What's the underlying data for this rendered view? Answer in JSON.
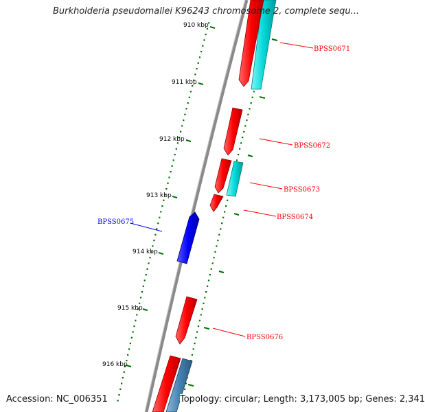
{
  "header": {
    "title": "Burkholderia pseudomallei K96243 chromosome 2, complete sequ..."
  },
  "footer": {
    "accession": "Accession: NC_006351",
    "summary": "Topology: circular; Length: 3,173,005 bp; Genes: 2,341"
  },
  "ruler": {
    "ticks": [
      "910 kbp",
      "911 kbp",
      "912 kbp",
      "913 kbp",
      "914 kbp",
      "915 kbp",
      "916 kbp"
    ]
  },
  "genes": [
    {
      "label": "BPSS0671",
      "strand": "forward",
      "color": "#ff0000"
    },
    {
      "label": "BPSS0672",
      "strand": "forward",
      "color": "#ff0000"
    },
    {
      "label": "BPSS0673",
      "strand": "forward",
      "color": "#ff0000"
    },
    {
      "label": "BPSS0674",
      "strand": "forward",
      "color": "#ff0000"
    },
    {
      "label": "BPSS0675",
      "strand": "reverse",
      "color": "#0000ff"
    },
    {
      "label": "BPSS0676",
      "strand": "forward",
      "color": "#ff0000"
    }
  ],
  "colors": {
    "forward_cds": "#ff0000",
    "reverse_cds": "#0000ff",
    "feature_cyan": "#00d8d8",
    "feature_steel": "#4682b4",
    "backbone": "#808080",
    "ruler": "#007000"
  }
}
